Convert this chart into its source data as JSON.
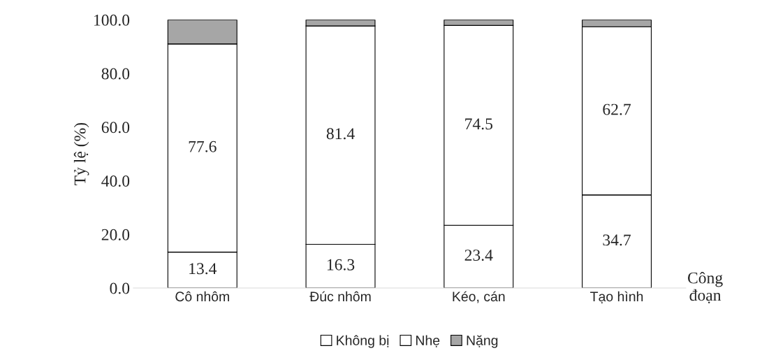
{
  "chart_data": {
    "type": "bar",
    "stacked": true,
    "ylabel": "Tỷ lệ (%)",
    "xlabel": "Công\nđoạn",
    "categories": [
      "Cô nhôm",
      "Đúc nhôm",
      "Kéo, cán",
      "Tạo hình"
    ],
    "series": [
      {
        "name": "Không bị",
        "color": "#ffffff",
        "values": [
          13.4,
          16.3,
          23.4,
          34.7
        ],
        "value_labels": [
          "13.4",
          "16.3",
          "23.4",
          "34.7"
        ]
      },
      {
        "name": "Nhẹ",
        "color": "#ffffff",
        "values": [
          77.6,
          81.4,
          74.5,
          62.7
        ],
        "value_labels": [
          "77.6",
          "81.4",
          "74.5",
          "62.7"
        ]
      },
      {
        "name": "Nặng",
        "color": "#a6a6a6",
        "values": [
          9.0,
          2.3,
          2.1,
          2.6
        ]
      }
    ],
    "ylim": [
      0,
      100
    ],
    "yticks": [
      {
        "value": 0,
        "label": "0.0"
      },
      {
        "value": 20,
        "label": "20.0"
      },
      {
        "value": 40,
        "label": "40.0"
      },
      {
        "value": 60,
        "label": "60.0"
      },
      {
        "value": 80,
        "label": "80.0"
      },
      {
        "value": 100,
        "label": "100.0"
      }
    ],
    "legend": "bottom",
    "grid": false
  }
}
